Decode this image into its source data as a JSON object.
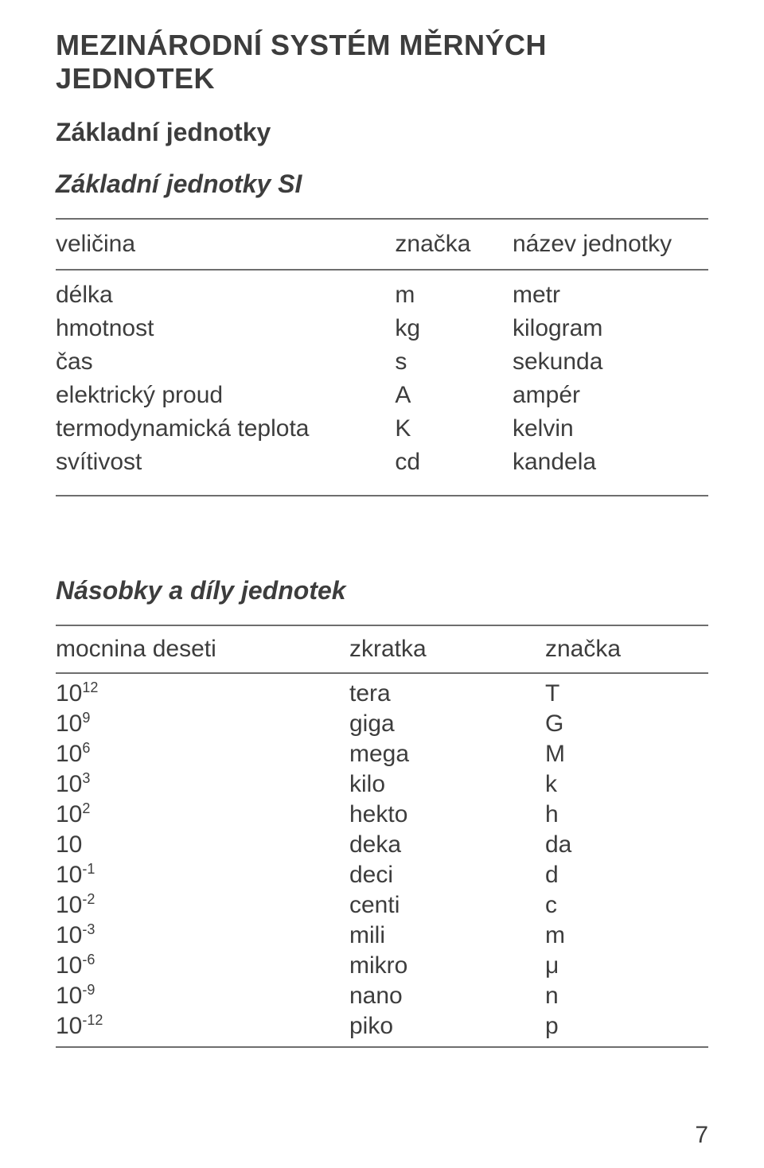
{
  "title_main": "MEZINÁRODNÍ SYSTÉM MĚRNÝCH JEDNOTEK",
  "title_sub": "Základní jednotky",
  "si_table": {
    "caption": "Základní jednotky SI",
    "header": {
      "c1": "veličina",
      "c2": "značka",
      "c3": "název jednotky"
    },
    "rows": [
      {
        "c1": "délka",
        "c2": "m",
        "c3": "metr"
      },
      {
        "c1": "hmotnost",
        "c2": "kg",
        "c3": "kilogram"
      },
      {
        "c1": "čas",
        "c2": "s",
        "c3": "sekunda"
      },
      {
        "c1": "elektrický proud",
        "c2": "A",
        "c3": "ampér"
      },
      {
        "c1": "termodynamická teplota",
        "c2": "K",
        "c3": "kelvin"
      },
      {
        "c1": "svítivost",
        "c2": "cd",
        "c3": "kandela"
      }
    ]
  },
  "prefix_table": {
    "caption": "Násobky a díly  jednotek",
    "header": {
      "c1": "mocnina deseti",
      "c2": "zkratka",
      "c3": "značka"
    },
    "rows": [
      {
        "base": "10",
        "exp": "12",
        "c2": "tera",
        "c3": "T"
      },
      {
        "base": "10",
        "exp": "9",
        "c2": "giga",
        "c3": "G"
      },
      {
        "base": "10",
        "exp": "6",
        "c2": "mega",
        "c3": "M"
      },
      {
        "base": "10",
        "exp": "3",
        "c2": "kilo",
        "c3": "k"
      },
      {
        "base": "10",
        "exp": "2",
        "c2": "hekto",
        "c3": "h"
      },
      {
        "base": "10",
        "exp": "",
        "c2": "deka",
        "c3": "da"
      },
      {
        "base": "10",
        "exp": "-1",
        "c2": "deci",
        "c3": "d"
      },
      {
        "base": "10",
        "exp": "-2",
        "c2": "centi",
        "c3": "c"
      },
      {
        "base": "10",
        "exp": "-3",
        "c2": "mili",
        "c3": "m"
      },
      {
        "base": "10",
        "exp": "-6",
        "c2": "mikro",
        "c3": "μ"
      },
      {
        "base": "10",
        "exp": "-9",
        "c2": "nano",
        "c3": "n"
      },
      {
        "base": "10",
        "exp": "-12",
        "c2": "piko",
        "c3": "p"
      }
    ]
  },
  "page_number": "7",
  "colors": {
    "text": "#3d3d3d",
    "rule": "#6e6e6e",
    "background": "#ffffff"
  }
}
